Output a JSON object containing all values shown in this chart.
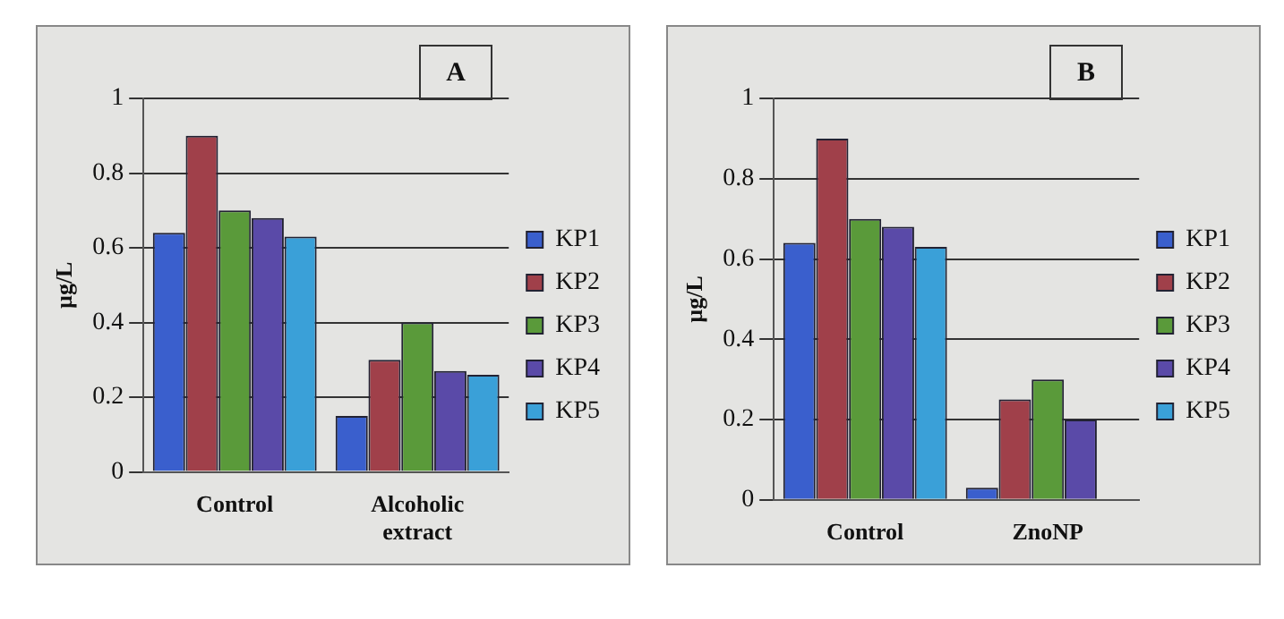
{
  "chart_data": [
    {
      "type": "bar",
      "title": "A",
      "ylabel": "µg/L",
      "categories": [
        "Control",
        "Alcoholic extract"
      ],
      "series": [
        {
          "name": "KP1",
          "color": "#3a5fcd",
          "values": [
            0.64,
            0.15
          ]
        },
        {
          "name": "KP2",
          "color": "#a0404a",
          "values": [
            0.9,
            0.3
          ]
        },
        {
          "name": "KP3",
          "color": "#5a9a3a",
          "values": [
            0.7,
            0.4
          ]
        },
        {
          "name": "KP4",
          "color": "#5a4aa8",
          "values": [
            0.68,
            0.27
          ]
        },
        {
          "name": "KP5",
          "color": "#3aa0d8",
          "values": [
            0.63,
            0.26
          ]
        }
      ],
      "ylim": [
        0,
        1
      ],
      "yticks": [
        0,
        0.2,
        0.4,
        0.6,
        0.8,
        1
      ],
      "grid": "y",
      "legend": "right"
    },
    {
      "type": "bar",
      "title": "B",
      "ylabel": "µg/L",
      "categories": [
        "Control",
        "ZnoNP"
      ],
      "series": [
        {
          "name": "KP1",
          "color": "#3a5fcd",
          "values": [
            0.64,
            0.03
          ]
        },
        {
          "name": "KP2",
          "color": "#a0404a",
          "values": [
            0.9,
            0.25
          ]
        },
        {
          "name": "KP3",
          "color": "#5a9a3a",
          "values": [
            0.7,
            0.3
          ]
        },
        {
          "name": "KP4",
          "color": "#5a4aa8",
          "values": [
            0.68,
            0.2
          ]
        },
        {
          "name": "KP5",
          "color": "#3aa0d8",
          "values": [
            0.63,
            0
          ]
        }
      ],
      "ylim": [
        0,
        1
      ],
      "yticks": [
        0,
        0.2,
        0.4,
        0.6,
        0.8,
        1
      ],
      "grid": "y",
      "legend": "right"
    }
  ]
}
